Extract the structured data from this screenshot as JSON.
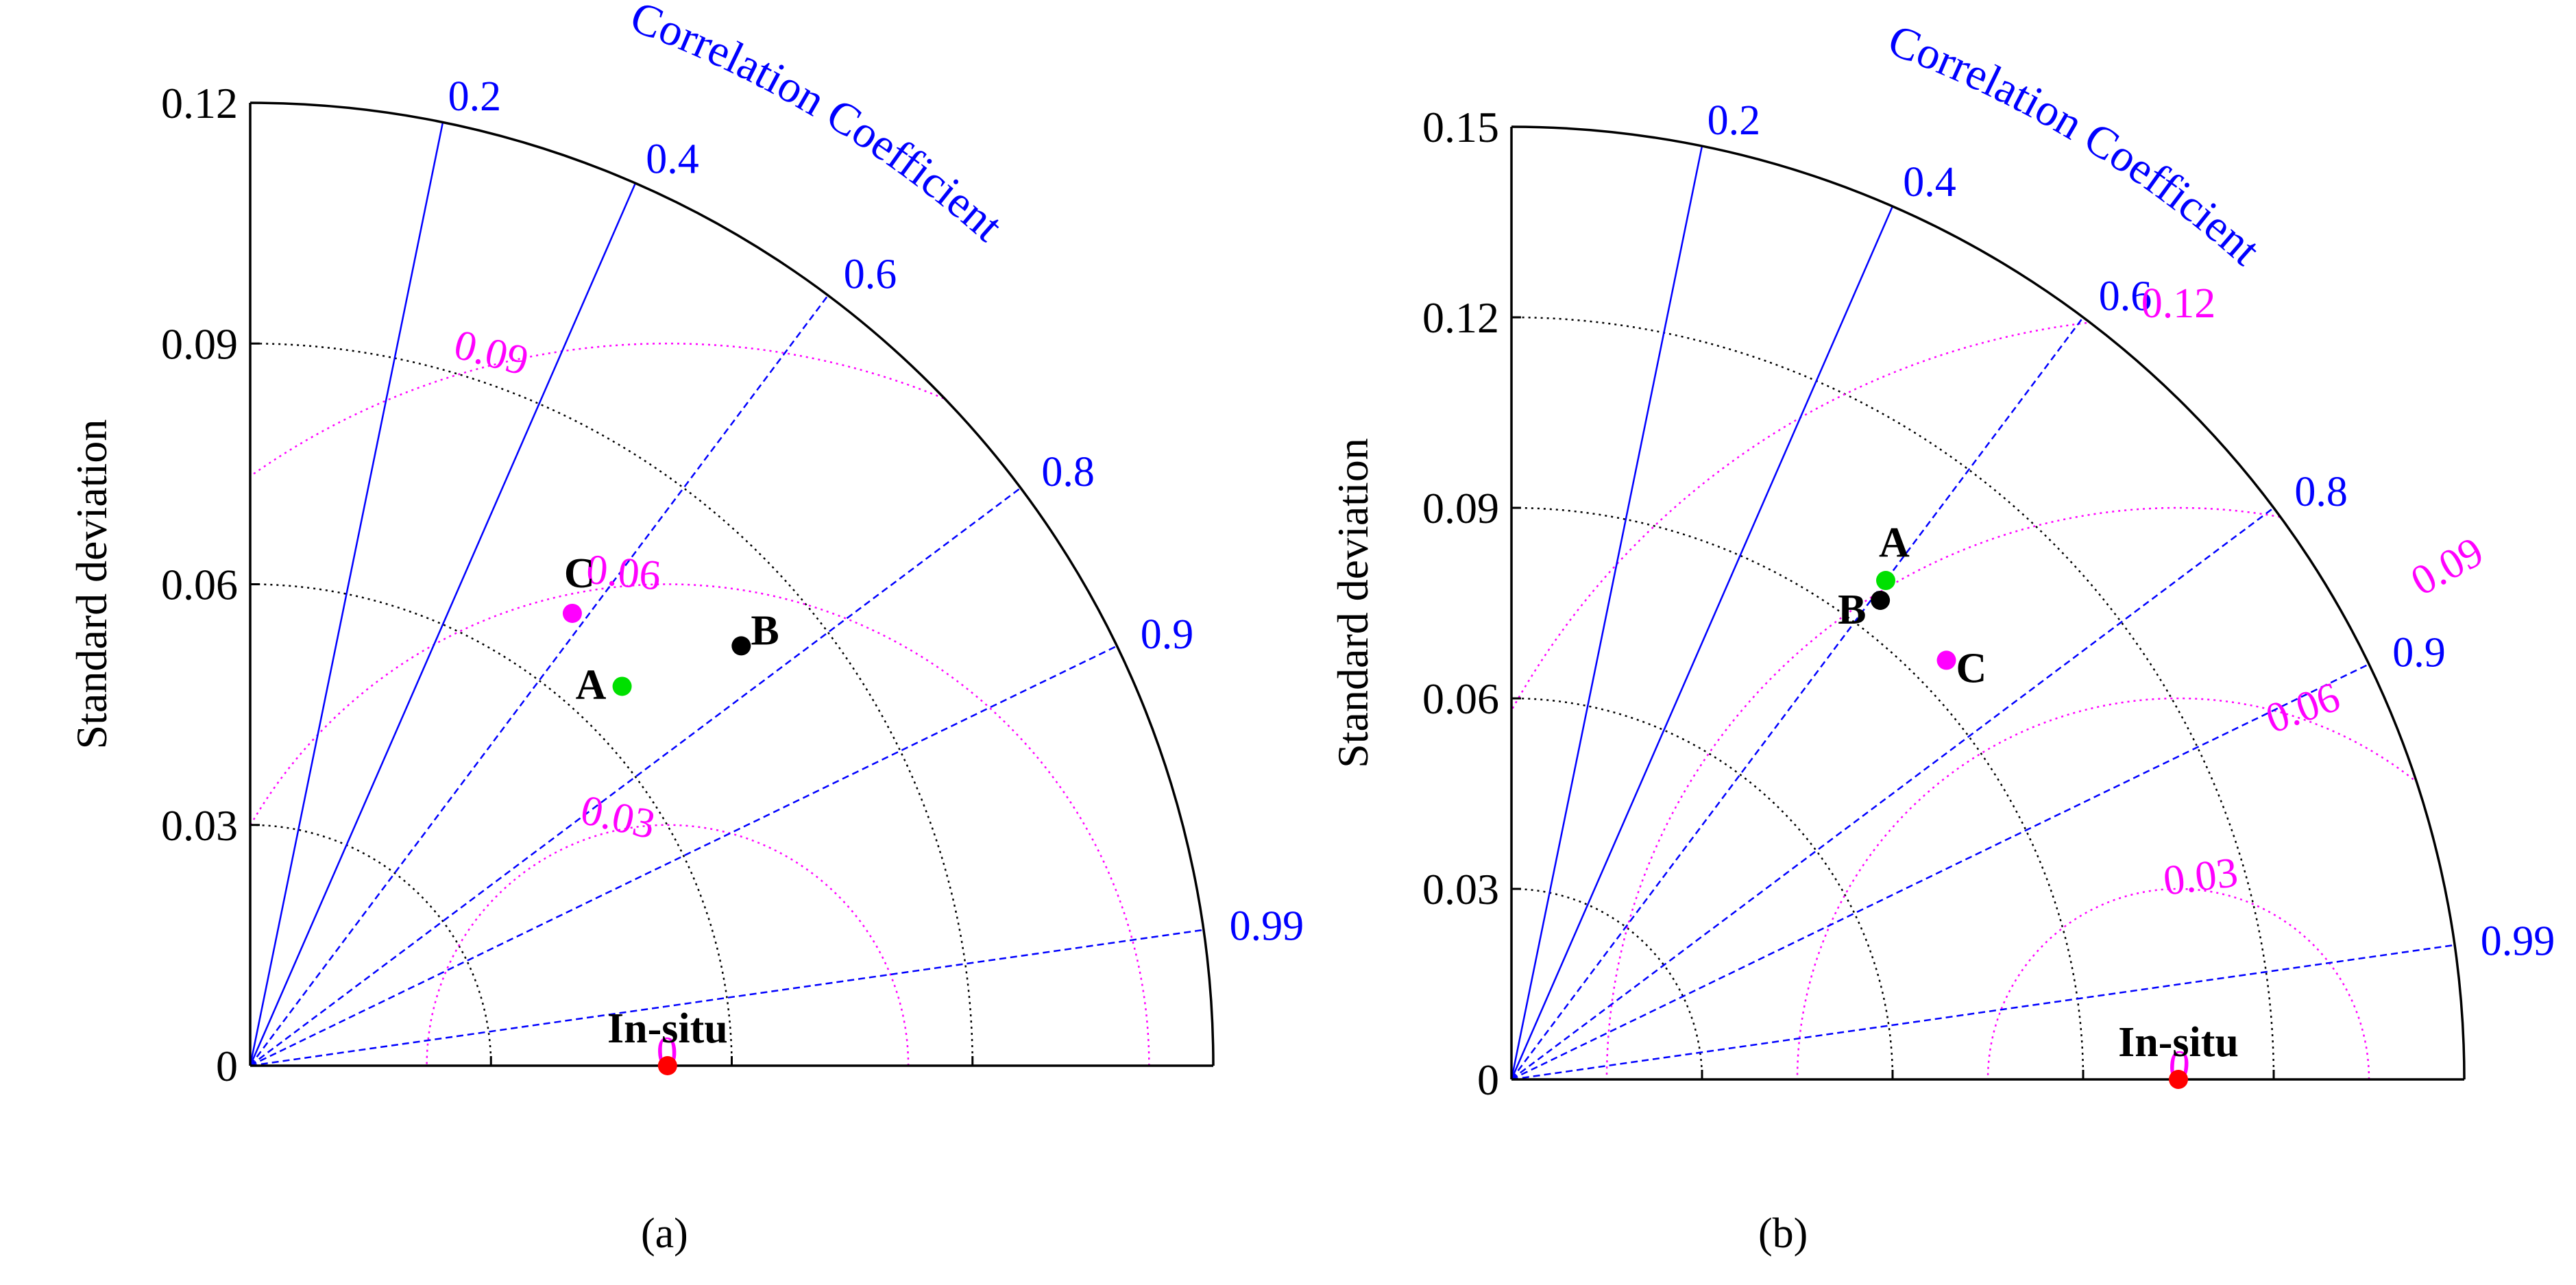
{
  "chart_data": [
    {
      "type": "taylor",
      "panel_label": "(a)",
      "ylabel": "Standard deviation",
      "corr_label": "Correlation Coefficient",
      "std_max": 0.12,
      "std_ticks": [
        0,
        0.03,
        0.06,
        0.09,
        0.12
      ],
      "std_tick_labels": [
        "0",
        "0.03",
        "0.06",
        "0.09",
        "0.12"
      ],
      "corr_ticks": [
        0.2,
        0.4,
        0.6,
        0.8,
        0.9,
        0.99
      ],
      "corr_tick_labels": [
        "0.2",
        "0.4",
        "0.6",
        "0.8",
        "0.9",
        "0.99"
      ],
      "rms_ticks": [
        0,
        0.03,
        0.06,
        0.09
      ],
      "rms_tick_labels": [
        "0",
        "0.03",
        "0.06",
        "0.09"
      ],
      "reference": {
        "name": "In-situ",
        "std": 0.052,
        "color": "#ff0000"
      },
      "points": [
        {
          "name": "A",
          "std": 0.0662,
          "corr": 0.7,
          "color": "#00e000"
        },
        {
          "name": "B",
          "std": 0.0805,
          "corr": 0.76,
          "color": "#000000"
        },
        {
          "name": "C",
          "std": 0.0692,
          "corr": 0.58,
          "color": "#ff00ff"
        }
      ],
      "colors": {
        "corr": "#0000ff",
        "rms": "#ff00ff",
        "std_grid": "#000000"
      }
    },
    {
      "type": "taylor",
      "panel_label": "(b)",
      "ylabel": "Standard deviation",
      "corr_label": "Correlation Coefficient",
      "std_max": 0.15,
      "std_ticks": [
        0,
        0.03,
        0.06,
        0.09,
        0.12,
        0.15
      ],
      "std_tick_labels": [
        "0",
        "0.03",
        "0.06",
        "0.09",
        "0.12",
        "0.15"
      ],
      "corr_ticks": [
        0.2,
        0.4,
        0.6,
        0.8,
        0.9,
        0.99
      ],
      "corr_tick_labels": [
        "0.2",
        "0.4",
        "0.6",
        "0.8",
        "0.9",
        "0.99"
      ],
      "rms_ticks": [
        0,
        0.03,
        0.06,
        0.09,
        0.12
      ],
      "rms_tick_labels": [
        "0",
        "0.03",
        "0.06",
        "0.09",
        "0.12"
      ],
      "reference": {
        "name": "In-situ",
        "std": 0.105,
        "color": "#ff0000"
      },
      "points": [
        {
          "name": "A",
          "std": 0.0982,
          "corr": 0.6,
          "color": "#00e000"
        },
        {
          "name": "B",
          "std": 0.0952,
          "corr": 0.61,
          "color": "#000000"
        },
        {
          "name": "C",
          "std": 0.0951,
          "corr": 0.72,
          "color": "#ff00ff"
        }
      ],
      "colors": {
        "corr": "#0000ff",
        "rms": "#ff00ff",
        "std_grid": "#000000"
      }
    }
  ]
}
